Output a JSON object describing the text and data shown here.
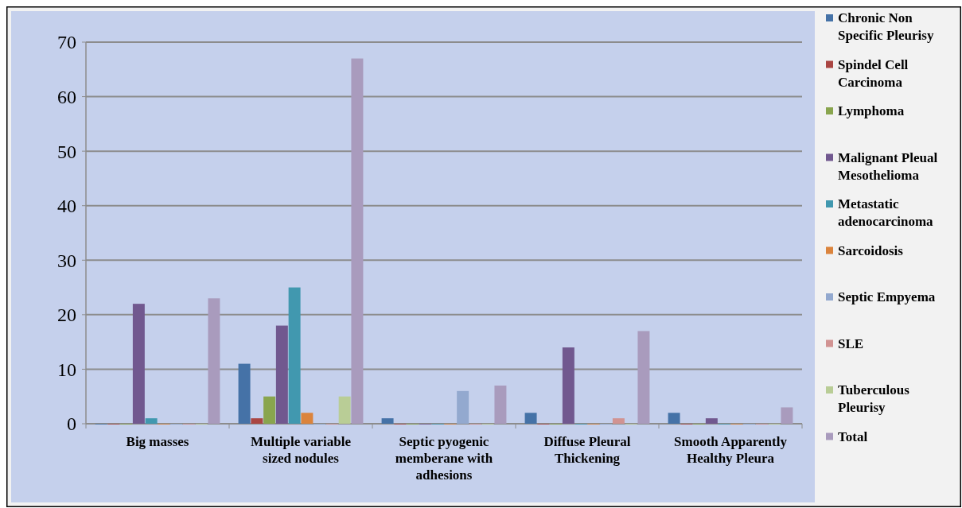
{
  "chart_data": {
    "type": "bar",
    "categories": [
      "Big masses",
      "Multiple variable sized nodules",
      "Septic pyogenic memberane with adhesions",
      "Diffuse Pleural Thickening",
      "Smooth Apparently Healthy Pleura"
    ],
    "series": [
      {
        "name": "Chronic Non Specific Pleurisy",
        "color": "#4572a7",
        "values": [
          0,
          11,
          1,
          2,
          2
        ]
      },
      {
        "name": "Spindel Cell Carcinoma",
        "color": "#aa4643",
        "values": [
          0,
          1,
          0,
          0,
          0
        ]
      },
      {
        "name": "Lymphoma",
        "color": "#89a54e",
        "values": [
          0,
          5,
          0,
          0,
          0
        ]
      },
      {
        "name": "Malignant Pleual Mesothelioma",
        "color": "#71588f",
        "values": [
          22,
          18,
          0,
          14,
          1
        ]
      },
      {
        "name": "Metastatic adenocarcinoma",
        "color": "#4198af",
        "values": [
          1,
          25,
          0,
          0,
          0
        ]
      },
      {
        "name": "Sarcoidosis",
        "color": "#db843d",
        "values": [
          0,
          2,
          0,
          0,
          0
        ]
      },
      {
        "name": "Septic Empyema",
        "color": "#93a9cf",
        "values": [
          0,
          0,
          6,
          0,
          0
        ]
      },
      {
        "name": "SLE",
        "color": "#d19392",
        "values": [
          0,
          0,
          0,
          1,
          0
        ]
      },
      {
        "name": "Tuberculous Pleurisy",
        "color": "#b9cd96",
        "values": [
          0,
          5,
          0,
          0,
          0
        ]
      },
      {
        "name": "Total",
        "color": "#a99bbd",
        "values": [
          23,
          67,
          7,
          17,
          3
        ]
      }
    ],
    "ylim": [
      0,
      70
    ],
    "yticks": [
      0,
      10,
      20,
      30,
      40,
      50,
      60,
      70
    ],
    "grid": "y",
    "legend": "right"
  }
}
